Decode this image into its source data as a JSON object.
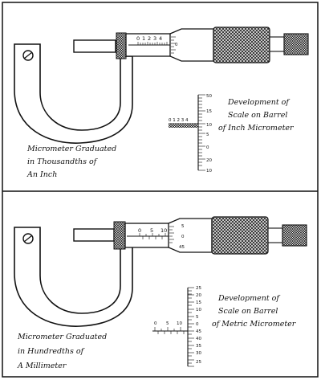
{
  "top": {
    "caption_lines": [
      "Micrometer Graduated",
      "in Thousandths of",
      "An Inch"
    ],
    "dev_lines": [
      "Development of",
      "Scale on Barrel",
      "of Inch Micrometer"
    ],
    "sleeve_digits": [
      "0",
      "1",
      "2",
      "3",
      "4"
    ],
    "thimble_digits": [
      "0"
    ],
    "dev_sleeve_digits": "0 1 2 3 4",
    "dev_thimble_numbers": [
      "50",
      "15",
      "10",
      "5",
      "0",
      "20",
      "10"
    ]
  },
  "bottom": {
    "caption_lines": [
      "Micrometer Graduated",
      "in Hundredths of",
      "A Millimeter"
    ],
    "dev_lines": [
      "Development of",
      "Scale on Barrel",
      "of Metric Micrometer"
    ],
    "sleeve_digits": [
      "0",
      "5",
      "10"
    ],
    "thimble_digits": [
      "5",
      "0",
      "45"
    ],
    "dev_sleeve_digits": [
      "0",
      "5",
      "10"
    ],
    "dev_thimble_numbers": [
      "25",
      "20",
      "15",
      "10",
      "5",
      "0",
      "45",
      "40",
      "35",
      "30",
      "25"
    ]
  }
}
